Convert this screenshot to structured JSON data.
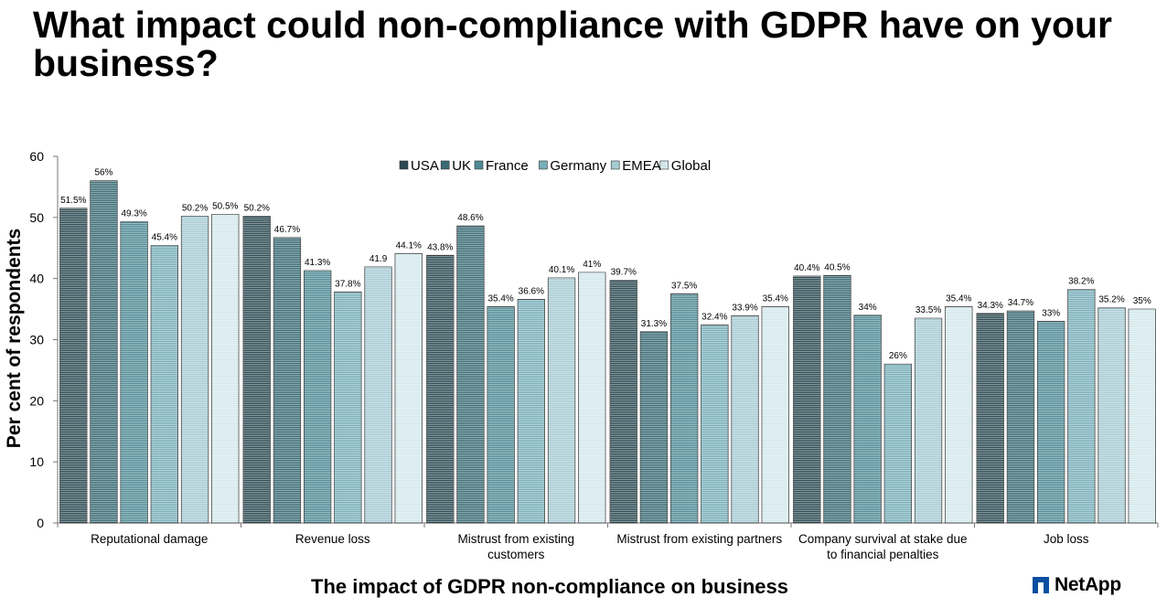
{
  "title": "What impact could non-compliance with GDPR have on your business?",
  "logo": {
    "text": "NetApp",
    "icon": "netapp-logo-icon"
  },
  "chart_data": {
    "type": "bar",
    "title": "",
    "xlabel": "The impact of GDPR non-compliance on business",
    "ylabel": "Per cent of respondents",
    "ylim": [
      0,
      60
    ],
    "yticks": [
      0,
      10,
      20,
      30,
      40,
      50,
      60
    ],
    "grid": false,
    "legend_position": "top",
    "categories": [
      "Reputational damage",
      "Revenue loss",
      "Mistrust from existing customers",
      "Mistrust from existing partners",
      "Company survival at stake due to financial penalties",
      "Job loss"
    ],
    "category_lines": [
      [
        "Reputational damage"
      ],
      [
        "Revenue loss"
      ],
      [
        "Mistrust from existing",
        "customers"
      ],
      [
        "Mistrust from existing partners"
      ],
      [
        "Company survival at stake due",
        "to financial penalties"
      ],
      [
        "Job loss"
      ]
    ],
    "series": [
      {
        "name": "USA",
        "color": "#2b4a52",
        "values": [
          51.5,
          50.2,
          43.8,
          39.7,
          40.4,
          34.3
        ],
        "labels": [
          "51.5%",
          "50.2%",
          "43.8%",
          "39.7%",
          "40.4%",
          "34.3%"
        ]
      },
      {
        "name": "UK",
        "color": "#3a6b75",
        "values": [
          56,
          46.7,
          48.6,
          31.3,
          40.5,
          34.7
        ],
        "labels": [
          "56%",
          "46.7%",
          "48.6%",
          "31.3%",
          "40.5%",
          "34.7%"
        ]
      },
      {
        "name": "France",
        "color": "#4f8a96",
        "values": [
          49.3,
          41.3,
          35.4,
          37.5,
          34,
          33
        ],
        "labels": [
          "49.3%",
          "41.3%",
          "35.4%",
          "37.5%",
          "34%",
          "33%"
        ]
      },
      {
        "name": "Germany",
        "color": "#78aeb9",
        "values": [
          45.4,
          37.8,
          36.6,
          32.4,
          26,
          38.2
        ],
        "labels": [
          "45.4%",
          "37.8%",
          "36.6%",
          "32.4%",
          "26%",
          "38.2%"
        ]
      },
      {
        "name": "EMEA",
        "color": "#a6cbd3",
        "values": [
          50.2,
          41.9,
          40.1,
          33.9,
          33.5,
          35.2
        ],
        "labels": [
          "50.2%",
          "41.9",
          "40.1%",
          "33.9%",
          "33.5%",
          "35.2%"
        ]
      },
      {
        "name": "Global",
        "color": "#d3e8ec",
        "values": [
          50.5,
          44.1,
          41,
          35.4,
          35.4,
          35
        ],
        "labels": [
          "50.5%",
          "44.1%",
          "41%",
          "35.4%",
          "35.4%",
          "35%"
        ]
      }
    ]
  }
}
